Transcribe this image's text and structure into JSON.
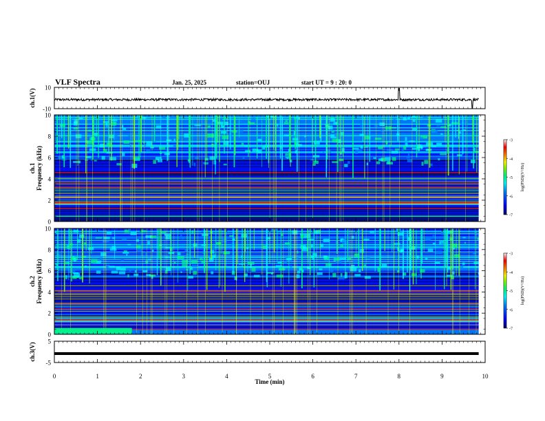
{
  "header": {
    "title": "VLF Spectra",
    "date": "Jan. 25, 2025",
    "station": "station=OUJ",
    "start_ut": "start UT =  9 : 20: 0"
  },
  "chart_data": [
    {
      "type": "line",
      "panel": "ch1-waveform",
      "ylabel": "ch.1(V)",
      "ylim": [
        -10,
        10
      ],
      "y_tick_labels": [
        "10",
        "-10"
      ],
      "xlim": [
        0,
        10
      ],
      "trace": "noise waveform centered near 0 V with spikes at ~8.0 min and ~9.7 min"
    },
    {
      "type": "heatmap",
      "panel": "ch1-spectrogram",
      "ylabel": "ch.1\nFrequency (kHz)",
      "ylim": [
        0,
        10
      ],
      "y_ticks": [
        0,
        2,
        4,
        6,
        8,
        10
      ],
      "xlim": [
        0,
        10
      ],
      "colorbar": {
        "label": "log(PSD)(V²/Hz)",
        "range": [
          -7,
          -3
        ],
        "ticks": [
          -3,
          -4,
          -5,
          -6,
          -7
        ]
      }
    },
    {
      "type": "heatmap",
      "panel": "ch2-spectrogram",
      "ylabel": "ch.2\nFrequency (kHz)",
      "ylim": [
        0,
        10
      ],
      "y_ticks": [
        0,
        2,
        4,
        6,
        8,
        10
      ],
      "xlim": [
        0,
        10
      ],
      "colorbar": {
        "label": "log(PSD)(V²/Hz)",
        "range": [
          -7,
          -3
        ],
        "ticks": [
          -3,
          -4,
          -5,
          -6,
          -7
        ]
      }
    },
    {
      "type": "line",
      "panel": "ch3-waveform",
      "ylabel": "ch.3(V)",
      "ylim": [
        -5,
        5
      ],
      "y_tick_labels": [
        "5",
        "-5"
      ],
      "xlim": [
        0,
        10
      ],
      "trace": "flat thick line near -1 V"
    }
  ],
  "x_axis": {
    "label": "Time (min)",
    "ticks": [
      0,
      1,
      2,
      3,
      4,
      5,
      6,
      7,
      8,
      9,
      10
    ]
  },
  "colors": {
    "colormap": [
      "#000064",
      "#0000ff",
      "#0080ff",
      "#00ffff",
      "#00ff80",
      "#80ff00",
      "#ffff00",
      "#ff8000",
      "#ff0000",
      "#ffffff"
    ],
    "trace": "#000000"
  }
}
